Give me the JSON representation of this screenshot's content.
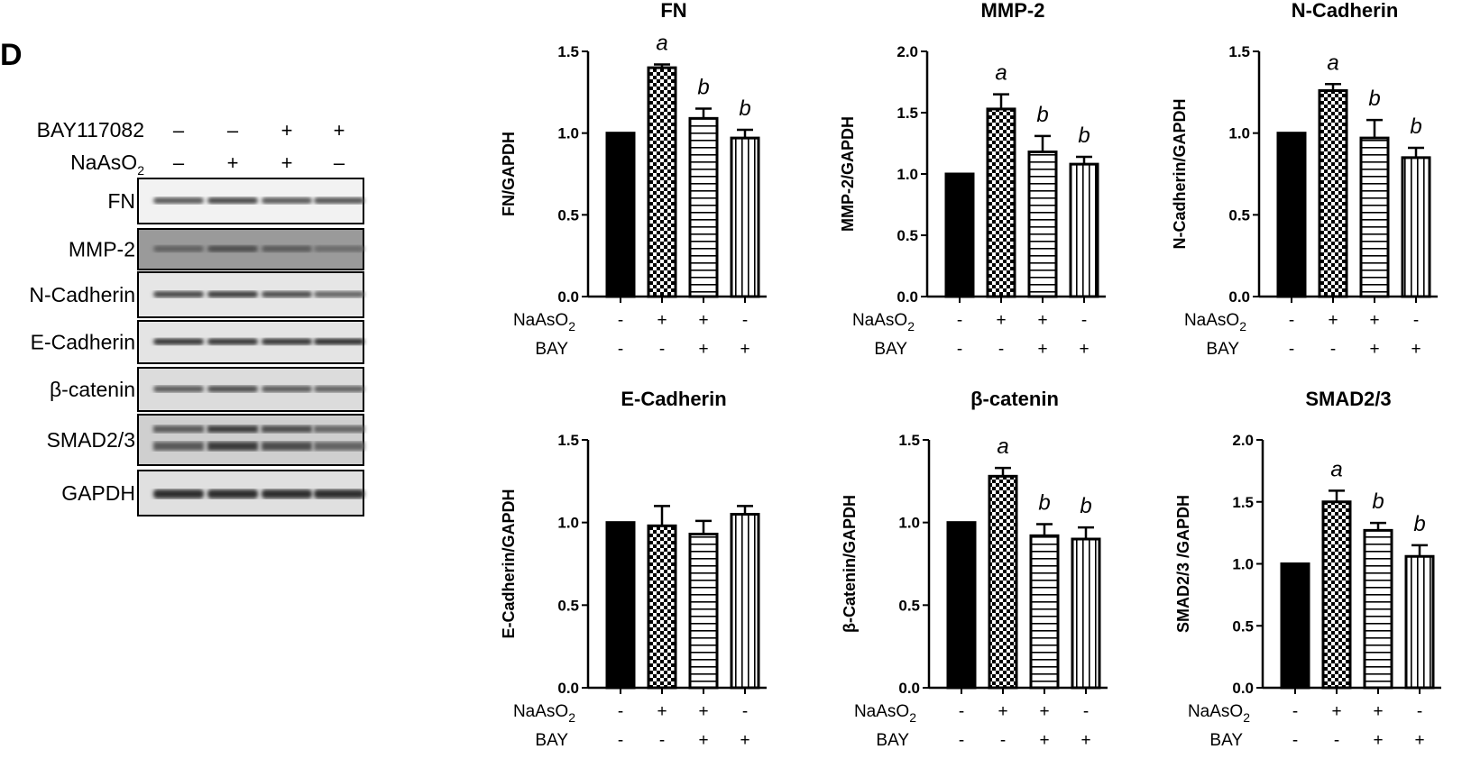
{
  "panel_letter": "D",
  "blot": {
    "header_rows": [
      {
        "label": "BAY117082",
        "signs": [
          "–",
          "–",
          "+",
          "+"
        ]
      },
      {
        "label": "NaAsO",
        "sub": "2",
        "signs": [
          "–",
          "+",
          "+",
          "–"
        ]
      }
    ],
    "bands": [
      "FN",
      "MMP-2",
      "N-Cadherin",
      "E-Cadherin",
      "β-catenin",
      "SMAD2/3",
      "GAPDH"
    ]
  },
  "treatment_labels": {
    "naaso2": "NaAsO",
    "naaso2_sub": "2",
    "bay": "BAY"
  },
  "treatments": {
    "naaso2": [
      "-",
      "+",
      "+",
      "-"
    ],
    "bay": [
      "-",
      "-",
      "+",
      "+"
    ]
  },
  "colors": {
    "bar": "#000000",
    "background": "#ffffff"
  },
  "chart_data": [
    {
      "type": "bar",
      "title": "FN",
      "ylabel": "FN/GAPDH",
      "ylim": [
        0,
        1.5
      ],
      "yticks": [
        "0.0",
        "0.5",
        "1.0",
        "1.5"
      ],
      "values": [
        1.0,
        1.4,
        1.09,
        0.97
      ],
      "errors": [
        0,
        0.02,
        0.06,
        0.05
      ],
      "significance": [
        "",
        "a",
        "b",
        "b"
      ],
      "patterns": [
        "solid",
        "checker",
        "horizontal",
        "vertical"
      ]
    },
    {
      "type": "bar",
      "title": "MMP-2",
      "ylabel": "MMP-2/GAPDH",
      "ylim": [
        0,
        2.0
      ],
      "yticks": [
        "0.0",
        "0.5",
        "1.0",
        "1.5",
        "2.0"
      ],
      "values": [
        1.0,
        1.53,
        1.18,
        1.08
      ],
      "errors": [
        0,
        0.12,
        0.13,
        0.06
      ],
      "significance": [
        "",
        "a",
        "b",
        "b"
      ],
      "patterns": [
        "solid",
        "checker",
        "horizontal",
        "vertical"
      ]
    },
    {
      "type": "bar",
      "title": "N-Cadherin",
      "ylabel": "N-Cadherin/GAPDH",
      "ylim": [
        0,
        1.5
      ],
      "yticks": [
        "0.0",
        "0.5",
        "1.0",
        "1.5"
      ],
      "values": [
        1.0,
        1.26,
        0.97,
        0.85
      ],
      "errors": [
        0,
        0.04,
        0.11,
        0.06
      ],
      "significance": [
        "",
        "a",
        "b",
        "b"
      ],
      "patterns": [
        "solid",
        "checker",
        "horizontal",
        "vertical"
      ]
    },
    {
      "type": "bar",
      "title": "E-Cadherin",
      "ylabel": "E-Cadherin/GAPDH",
      "ylim": [
        0,
        1.5
      ],
      "yticks": [
        "0.0",
        "0.5",
        "1.0",
        "1.5"
      ],
      "values": [
        1.0,
        0.98,
        0.93,
        1.05
      ],
      "errors": [
        0,
        0.12,
        0.08,
        0.05
      ],
      "significance": [
        "",
        "",
        "",
        ""
      ],
      "patterns": [
        "solid",
        "checker",
        "horizontal",
        "vertical"
      ]
    },
    {
      "type": "bar",
      "title": "β-catenin",
      "ylabel": "β-Catenin/GAPDH",
      "ylim": [
        0,
        1.5
      ],
      "yticks": [
        "0.0",
        "0.5",
        "1.0",
        "1.5"
      ],
      "values": [
        1.0,
        1.28,
        0.92,
        0.9
      ],
      "errors": [
        0,
        0.05,
        0.07,
        0.07
      ],
      "significance": [
        "",
        "a",
        "b",
        "b"
      ],
      "patterns": [
        "solid",
        "checker",
        "horizontal",
        "vertical"
      ]
    },
    {
      "type": "bar",
      "title": "SMAD2/3",
      "ylabel": "SMAD2/3 /GAPDH",
      "ylim": [
        0,
        2.0
      ],
      "yticks": [
        "0.0",
        "0.5",
        "1.0",
        "1.5",
        "2.0"
      ],
      "values": [
        1.0,
        1.5,
        1.27,
        1.06
      ],
      "errors": [
        0,
        0.09,
        0.06,
        0.09
      ],
      "significance": [
        "",
        "a",
        "b",
        "b"
      ],
      "patterns": [
        "solid",
        "checker",
        "horizontal",
        "vertical"
      ]
    }
  ]
}
